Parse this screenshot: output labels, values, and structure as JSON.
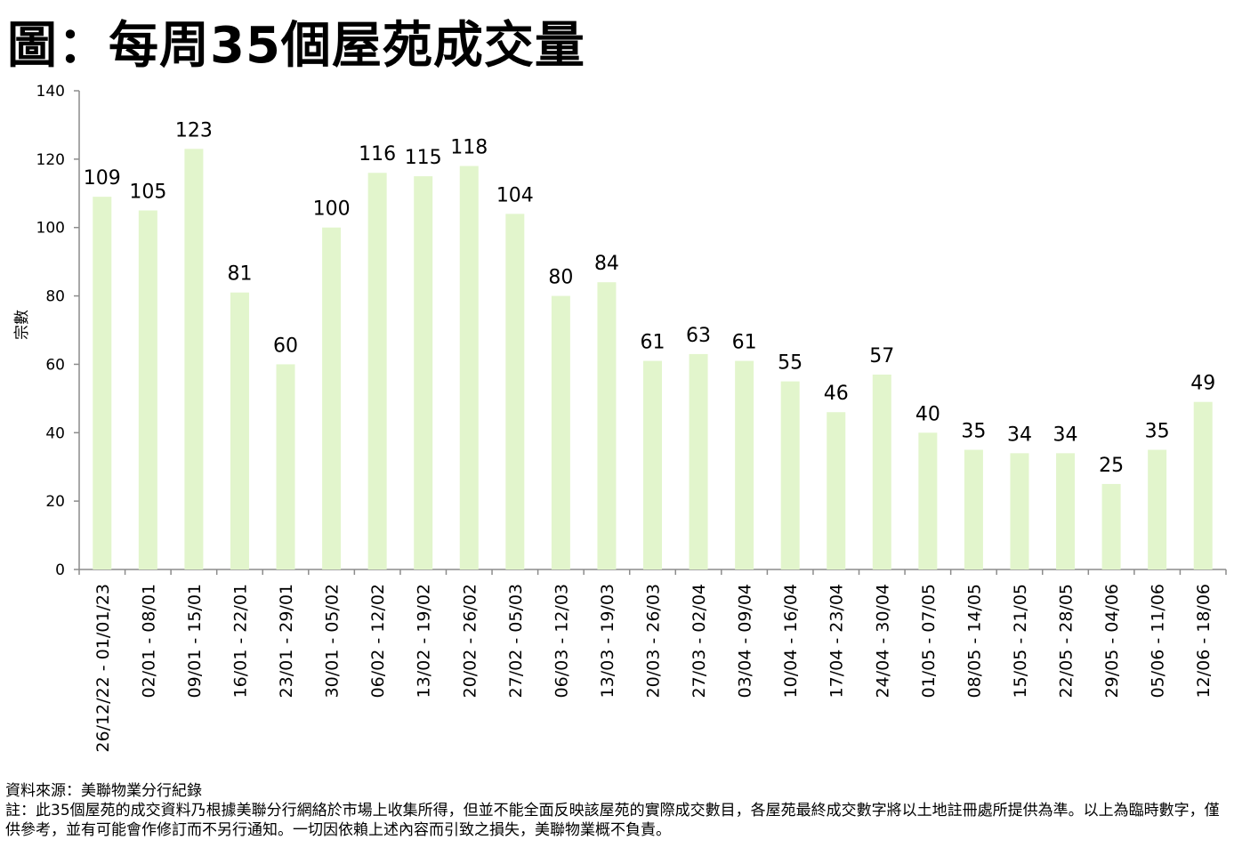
{
  "title": "圖：每周35個屋苑成交量",
  "footer": {
    "source": "資料來源：美聯物業分行紀錄",
    "note": "註：此35個屋苑的成交資料乃根據美聯分行網絡於市場上收集所得，但並不能全面反映該屋苑的實際成交數目，各屋苑最終成交數字將以土地註冊處所提供為準。以上為臨時數字，僅供參考，並有可能會作修訂而不另行通知。一切因依賴上述內容而引致之損失，美聯物業概不負責。"
  },
  "chart_data": {
    "type": "bar",
    "title": "",
    "xlabel": "",
    "ylabel": "宗數",
    "ylim": [
      0,
      140
    ],
    "yticks": [
      0,
      20,
      40,
      60,
      80,
      100,
      120,
      140
    ],
    "grid": false,
    "bar_color": "#e2f5cc",
    "categories": [
      "26/12/22 - 01/01/23",
      "02/01 - 08/01",
      "09/01 - 15/01",
      "16/01 - 22/01",
      "23/01 - 29/01",
      "30/01 - 05/02",
      "06/02 - 12/02",
      "13/02 - 19/02",
      "20/02 - 26/02",
      "27/02 - 05/03",
      "06/03 - 12/03",
      "13/03 - 19/03",
      "20/03 - 26/03",
      "27/03 - 02/04",
      "03/04 - 09/04",
      "10/04 - 16/04",
      "17/04 - 23/04",
      "24/04 - 30/04",
      "01/05 - 07/05",
      "08/05 - 14/05",
      "15/05 - 21/05",
      "22/05 - 28/05",
      "29/05 - 04/06",
      "05/06 - 11/06",
      "12/06 - 18/06"
    ],
    "values": [
      109,
      105,
      123,
      81,
      60,
      100,
      116,
      115,
      118,
      104,
      80,
      84,
      61,
      63,
      61,
      55,
      46,
      57,
      40,
      35,
      34,
      34,
      25,
      35,
      49
    ]
  }
}
